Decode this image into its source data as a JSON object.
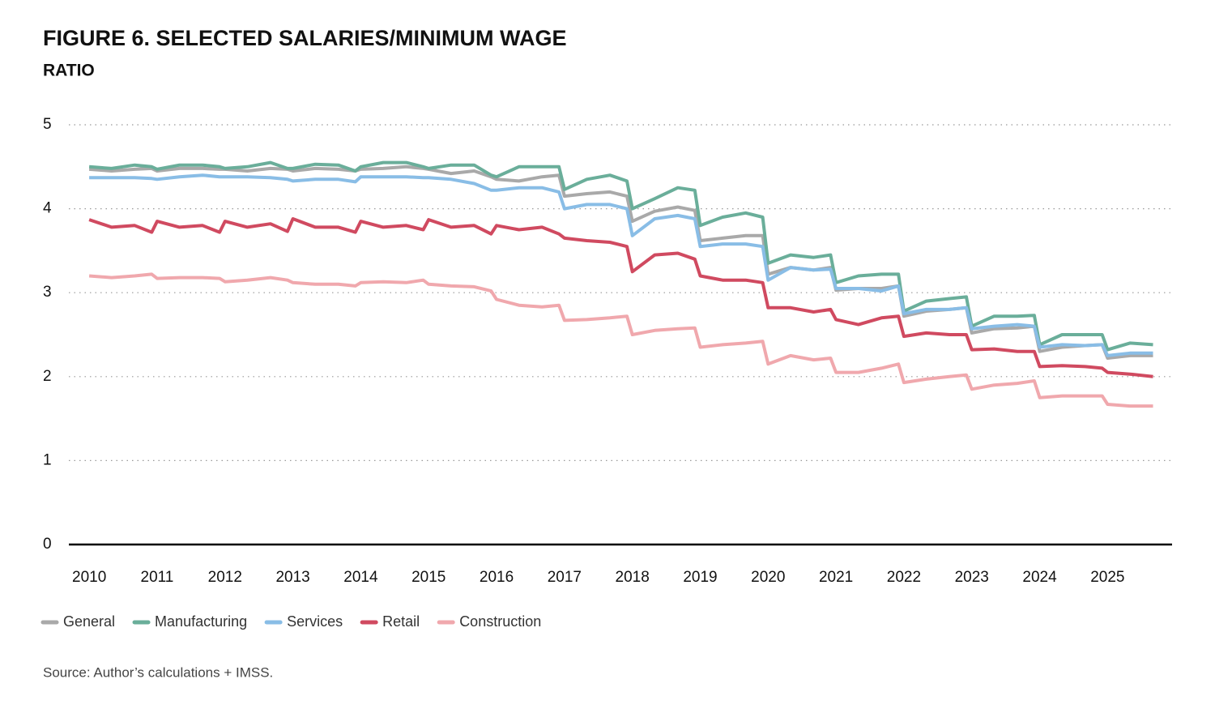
{
  "chart_data": {
    "type": "line",
    "title": "FIGURE 6. SELECTED SALARIES/MINIMUM WAGE",
    "subtitle": "RATIO",
    "source": "Source: Author’s calculations + IMSS.",
    "x": [
      2010,
      2010.33,
      2010.67,
      2010.92,
      2011,
      2011.33,
      2011.67,
      2011.92,
      2012,
      2012.33,
      2012.67,
      2012.92,
      2013,
      2013.33,
      2013.67,
      2013.92,
      2014,
      2014.33,
      2014.67,
      2014.92,
      2015,
      2015.33,
      2015.67,
      2015.92,
      2016,
      2016.33,
      2016.67,
      2016.92,
      2017,
      2017.33,
      2017.67,
      2017.92,
      2018,
      2018.33,
      2018.67,
      2018.92,
      2019,
      2019.33,
      2019.67,
      2019.92,
      2020,
      2020.33,
      2020.67,
      2020.92,
      2021,
      2021.33,
      2021.67,
      2021.92,
      2022,
      2022.33,
      2022.67,
      2022.92,
      2023,
      2023.33,
      2023.67,
      2023.92,
      2024,
      2024.33,
      2024.67,
      2024.92,
      2025,
      2025.33,
      2025.67
    ],
    "series": [
      {
        "name": "General",
        "color": "#a9a9a9",
        "values": [
          4.47,
          4.45,
          4.47,
          4.48,
          4.45,
          4.48,
          4.48,
          4.47,
          4.47,
          4.45,
          4.48,
          4.47,
          4.45,
          4.48,
          4.47,
          4.45,
          4.47,
          4.48,
          4.5,
          4.48,
          4.47,
          4.42,
          4.45,
          4.38,
          4.35,
          4.33,
          4.38,
          4.4,
          4.15,
          4.18,
          4.2,
          4.15,
          3.85,
          3.97,
          4.02,
          3.98,
          3.62,
          3.65,
          3.68,
          3.68,
          3.22,
          3.3,
          3.27,
          3.3,
          3.03,
          3.05,
          3.05,
          3.08,
          2.72,
          2.78,
          2.8,
          2.82,
          2.52,
          2.57,
          2.58,
          2.6,
          2.3,
          2.35,
          2.37,
          2.38,
          2.22,
          2.25,
          2.25
        ]
      },
      {
        "name": "Manufacturing",
        "color": "#6aae9a",
        "values": [
          4.5,
          4.48,
          4.52,
          4.5,
          4.47,
          4.52,
          4.52,
          4.5,
          4.48,
          4.5,
          4.55,
          4.48,
          4.48,
          4.53,
          4.52,
          4.45,
          4.5,
          4.55,
          4.55,
          4.5,
          4.48,
          4.52,
          4.52,
          4.4,
          4.38,
          4.5,
          4.5,
          4.5,
          4.23,
          4.35,
          4.4,
          4.33,
          4.0,
          4.12,
          4.25,
          4.22,
          3.8,
          3.9,
          3.95,
          3.9,
          3.35,
          3.45,
          3.42,
          3.45,
          3.12,
          3.2,
          3.22,
          3.22,
          2.78,
          2.9,
          2.93,
          2.95,
          2.6,
          2.72,
          2.72,
          2.73,
          2.38,
          2.5,
          2.5,
          2.5,
          2.32,
          2.4,
          2.38
        ]
      },
      {
        "name": "Services",
        "color": "#89bde6",
        "values": [
          4.37,
          4.37,
          4.37,
          4.36,
          4.35,
          4.38,
          4.4,
          4.38,
          4.38,
          4.38,
          4.37,
          4.35,
          4.33,
          4.35,
          4.35,
          4.32,
          4.38,
          4.38,
          4.38,
          4.37,
          4.37,
          4.35,
          4.3,
          4.22,
          4.22,
          4.25,
          4.25,
          4.2,
          4.0,
          4.05,
          4.05,
          4.0,
          3.68,
          3.88,
          3.92,
          3.88,
          3.55,
          3.58,
          3.58,
          3.55,
          3.15,
          3.3,
          3.27,
          3.28,
          3.05,
          3.05,
          3.02,
          3.08,
          2.75,
          2.8,
          2.8,
          2.82,
          2.57,
          2.6,
          2.62,
          2.6,
          2.35,
          2.38,
          2.37,
          2.38,
          2.25,
          2.28,
          2.28
        ]
      },
      {
        "name": "Retail",
        "color": "#d04a60",
        "values": [
          3.87,
          3.78,
          3.8,
          3.72,
          3.85,
          3.78,
          3.8,
          3.72,
          3.85,
          3.78,
          3.82,
          3.73,
          3.88,
          3.78,
          3.78,
          3.72,
          3.85,
          3.78,
          3.8,
          3.75,
          3.87,
          3.78,
          3.8,
          3.7,
          3.8,
          3.75,
          3.78,
          3.7,
          3.65,
          3.62,
          3.6,
          3.55,
          3.25,
          3.45,
          3.47,
          3.4,
          3.2,
          3.15,
          3.15,
          3.12,
          2.82,
          2.82,
          2.77,
          2.8,
          2.68,
          2.62,
          2.7,
          2.72,
          2.48,
          2.52,
          2.5,
          2.5,
          2.32,
          2.33,
          2.3,
          2.3,
          2.12,
          2.13,
          2.12,
          2.1,
          2.05,
          2.03,
          2.0
        ]
      },
      {
        "name": "Construction",
        "color": "#f0a8ad",
        "values": [
          3.2,
          3.18,
          3.2,
          3.22,
          3.17,
          3.18,
          3.18,
          3.17,
          3.13,
          3.15,
          3.18,
          3.15,
          3.12,
          3.1,
          3.1,
          3.08,
          3.12,
          3.13,
          3.12,
          3.15,
          3.1,
          3.08,
          3.07,
          3.02,
          2.92,
          2.85,
          2.83,
          2.85,
          2.67,
          2.68,
          2.7,
          2.72,
          2.5,
          2.55,
          2.57,
          2.58,
          2.35,
          2.38,
          2.4,
          2.42,
          2.15,
          2.25,
          2.2,
          2.22,
          2.05,
          2.05,
          2.1,
          2.15,
          1.93,
          1.97,
          2.0,
          2.02,
          1.85,
          1.9,
          1.92,
          1.95,
          1.75,
          1.77,
          1.77,
          1.77,
          1.67,
          1.65,
          1.65
        ]
      }
    ],
    "xlim": [
      2009.7,
      2025.95
    ],
    "xticks": [
      2010,
      2011,
      2012,
      2013,
      2014,
      2015,
      2016,
      2017,
      2018,
      2019,
      2020,
      2021,
      2022,
      2023,
      2024,
      2025
    ],
    "ylim": [
      0,
      5
    ],
    "yticks": [
      0,
      1,
      2,
      3,
      4,
      5
    ],
    "grid": true
  }
}
